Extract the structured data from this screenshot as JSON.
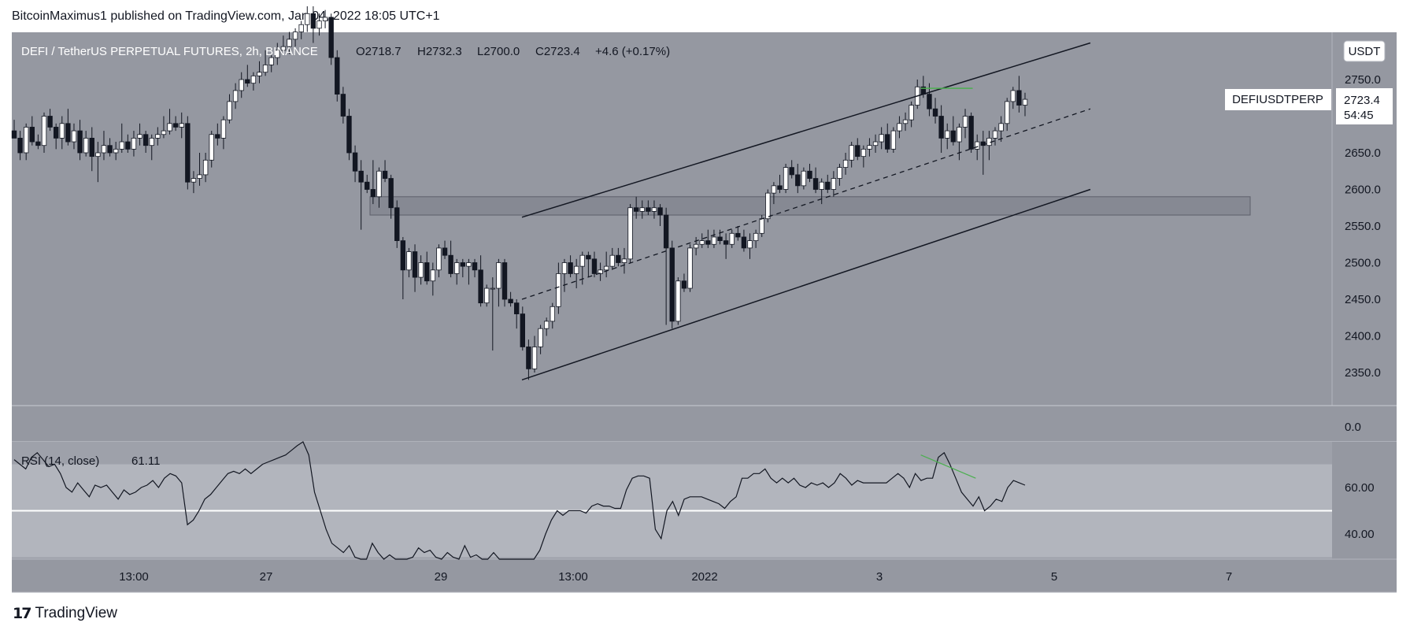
{
  "header": {
    "publisher_line": "BitcoinMaximus1 published on TradingView.com, Jan 04, 2022 18:05 UTC+1"
  },
  "footer": {
    "brand": "TradingView",
    "brand_icon": "tradingview-logo-icon"
  },
  "colors": {
    "background": "#9598a1",
    "rsi_background": "#9ea1aa",
    "rsi_band": "#b2b5bd",
    "candle_up": "#ffffff",
    "candle_down": "#131722",
    "line": "#131722",
    "green": "#4caf50",
    "zone": "#868993"
  },
  "chart_data": {
    "type": "candlestick",
    "legend": {
      "symbol": "DEFI / TetherUS PERPETUAL FUTURES, 2h, BINANCE",
      "open": "O2718.7",
      "high": "H2732.3",
      "low": "L2700.0",
      "close": "C2723.4",
      "change": "+4.6 (+0.17%)"
    },
    "currency": "USDT",
    "price_label": {
      "symbol": "DEFIUSDTPERP",
      "price": "2723.4",
      "countdown": "54:45"
    },
    "y_ticks": [
      "2750.0",
      "2700.0",
      "2650.0",
      "2600.0",
      "2550.0",
      "2500.0",
      "2450.0",
      "2400.0",
      "2350.0"
    ],
    "y_tick_values": [
      2750,
      2700,
      2650,
      2600,
      2550,
      2500,
      2450,
      2400,
      2350
    ],
    "separator_tick": "0.0",
    "x_ticks": [
      "13:00",
      "27",
      "29",
      "13:00",
      "2022",
      "3",
      "5",
      "7"
    ],
    "candles": [
      [
        2680,
        2695,
        2675,
        2670
      ],
      [
        2670,
        2680,
        2640,
        2650
      ],
      [
        2650,
        2690,
        2640,
        2685
      ],
      [
        2685,
        2700,
        2660,
        2665
      ],
      [
        2665,
        2675,
        2655,
        2660
      ],
      [
        2660,
        2705,
        2650,
        2700
      ],
      [
        2700,
        2710,
        2680,
        2685
      ],
      [
        2685,
        2690,
        2655,
        2670
      ],
      [
        2670,
        2700,
        2655,
        2690
      ],
      [
        2690,
        2710,
        2660,
        2665
      ],
      [
        2665,
        2690,
        2655,
        2680
      ],
      [
        2680,
        2695,
        2640,
        2650
      ],
      [
        2650,
        2680,
        2645,
        2670
      ],
      [
        2670,
        2685,
        2625,
        2645
      ],
      [
        2645,
        2665,
        2610,
        2650
      ],
      [
        2650,
        2680,
        2640,
        2660
      ],
      [
        2660,
        2670,
        2645,
        2650
      ],
      [
        2650,
        2665,
        2640,
        2655
      ],
      [
        2655,
        2690,
        2650,
        2665
      ],
      [
        2665,
        2675,
        2650,
        2655
      ],
      [
        2655,
        2680,
        2645,
        2670
      ],
      [
        2670,
        2690,
        2660,
        2675
      ],
      [
        2675,
        2680,
        2650,
        2660
      ],
      [
        2660,
        2675,
        2640,
        2670
      ],
      [
        2670,
        2685,
        2660,
        2675
      ],
      [
        2675,
        2700,
        2670,
        2680
      ],
      [
        2680,
        2710,
        2675,
        2690
      ],
      [
        2690,
        2700,
        2680,
        2685
      ],
      [
        2685,
        2705,
        2670,
        2690
      ],
      [
        2690,
        2700,
        2600,
        2610
      ],
      [
        2610,
        2625,
        2595,
        2615
      ],
      [
        2615,
        2650,
        2605,
        2620
      ],
      [
        2620,
        2650,
        2610,
        2640
      ],
      [
        2640,
        2680,
        2630,
        2675
      ],
      [
        2675,
        2690,
        2660,
        2670
      ],
      [
        2670,
        2700,
        2655,
        2695
      ],
      [
        2695,
        2730,
        2690,
        2720
      ],
      [
        2720,
        2745,
        2710,
        2735
      ],
      [
        2735,
        2760,
        2725,
        2750
      ],
      [
        2750,
        2770,
        2740,
        2745
      ],
      [
        2745,
        2760,
        2735,
        2755
      ],
      [
        2755,
        2775,
        2745,
        2760
      ],
      [
        2760,
        2790,
        2755,
        2770
      ],
      [
        2770,
        2785,
        2760,
        2780
      ],
      [
        2780,
        2800,
        2770,
        2790
      ],
      [
        2790,
        2810,
        2785,
        2795
      ],
      [
        2795,
        2815,
        2785,
        2805
      ],
      [
        2805,
        2820,
        2795,
        2815
      ],
      [
        2815,
        2830,
        2805,
        2825
      ],
      [
        2825,
        2850,
        2815,
        2840
      ],
      [
        2840,
        2850,
        2800,
        2820
      ],
      [
        2820,
        2840,
        2810,
        2830
      ],
      [
        2830,
        2845,
        2820,
        2835
      ],
      [
        2835,
        2840,
        2770,
        2780
      ],
      [
        2780,
        2790,
        2720,
        2730
      ],
      [
        2730,
        2740,
        2690,
        2700
      ],
      [
        2700,
        2710,
        2640,
        2650
      ],
      [
        2650,
        2660,
        2610,
        2625
      ],
      [
        2625,
        2640,
        2545,
        2610
      ],
      [
        2610,
        2620,
        2595,
        2600
      ],
      [
        2600,
        2640,
        2580,
        2590
      ],
      [
        2590,
        2630,
        2575,
        2625
      ],
      [
        2625,
        2640,
        2610,
        2615
      ],
      [
        2615,
        2620,
        2560,
        2575
      ],
      [
        2575,
        2585,
        2520,
        2530
      ],
      [
        2530,
        2535,
        2450,
        2490
      ],
      [
        2490,
        2520,
        2480,
        2515
      ],
      [
        2515,
        2525,
        2460,
        2480
      ],
      [
        2480,
        2510,
        2470,
        2500
      ],
      [
        2500,
        2515,
        2470,
        2475
      ],
      [
        2475,
        2500,
        2455,
        2490
      ],
      [
        2490,
        2525,
        2480,
        2520
      ],
      [
        2520,
        2530,
        2505,
        2510
      ],
      [
        2510,
        2530,
        2480,
        2485
      ],
      [
        2485,
        2505,
        2470,
        2500
      ],
      [
        2500,
        2505,
        2480,
        2495
      ],
      [
        2495,
        2505,
        2470,
        2500
      ],
      [
        2500,
        2505,
        2480,
        2490
      ],
      [
        2490,
        2510,
        2440,
        2445
      ],
      [
        2445,
        2470,
        2440,
        2465
      ],
      [
        2465,
        2480,
        2380,
        2465
      ],
      [
        2465,
        2505,
        2440,
        2500
      ],
      [
        2500,
        2505,
        2440,
        2450
      ],
      [
        2450,
        2460,
        2440,
        2445
      ],
      [
        2445,
        2450,
        2410,
        2430
      ],
      [
        2430,
        2440,
        2380,
        2385
      ],
      [
        2385,
        2395,
        2340,
        2355
      ],
      [
        2355,
        2400,
        2350,
        2385
      ],
      [
        2385,
        2415,
        2375,
        2410
      ],
      [
        2410,
        2425,
        2400,
        2420
      ],
      [
        2420,
        2445,
        2410,
        2440
      ],
      [
        2440,
        2500,
        2430,
        2485
      ],
      [
        2485,
        2505,
        2460,
        2500
      ],
      [
        2500,
        2510,
        2480,
        2485
      ],
      [
        2485,
        2505,
        2465,
        2495
      ],
      [
        2495,
        2515,
        2470,
        2510
      ],
      [
        2510,
        2515,
        2480,
        2505
      ],
      [
        2505,
        2515,
        2480,
        2485
      ],
      [
        2485,
        2500,
        2475,
        2490
      ],
      [
        2490,
        2515,
        2480,
        2495
      ],
      [
        2495,
        2520,
        2490,
        2510
      ],
      [
        2510,
        2520,
        2495,
        2500
      ],
      [
        2500,
        2520,
        2485,
        2505
      ],
      [
        2505,
        2580,
        2500,
        2575
      ],
      [
        2575,
        2590,
        2560,
        2570
      ],
      [
        2570,
        2585,
        2560,
        2575
      ],
      [
        2575,
        2585,
        2565,
        2570
      ],
      [
        2570,
        2585,
        2560,
        2575
      ],
      [
        2575,
        2580,
        2550,
        2565
      ],
      [
        2565,
        2575,
        2415,
        2520
      ],
      [
        2520,
        2530,
        2410,
        2420
      ],
      [
        2420,
        2480,
        2415,
        2475
      ],
      [
        2475,
        2485,
        2460,
        2465
      ],
      [
        2465,
        2525,
        2460,
        2520
      ],
      [
        2520,
        2535,
        2510,
        2525
      ],
      [
        2525,
        2540,
        2520,
        2530
      ],
      [
        2530,
        2545,
        2520,
        2525
      ],
      [
        2525,
        2545,
        2520,
        2535
      ],
      [
        2535,
        2545,
        2525,
        2530
      ],
      [
        2530,
        2540,
        2505,
        2525
      ],
      [
        2525,
        2545,
        2520,
        2540
      ],
      [
        2540,
        2550,
        2530,
        2535
      ],
      [
        2535,
        2545,
        2515,
        2520
      ],
      [
        2520,
        2540,
        2505,
        2530
      ],
      [
        2530,
        2545,
        2520,
        2540
      ],
      [
        2540,
        2565,
        2535,
        2560
      ],
      [
        2560,
        2600,
        2555,
        2595
      ],
      [
        2595,
        2610,
        2580,
        2605
      ],
      [
        2605,
        2620,
        2595,
        2600
      ],
      [
        2600,
        2635,
        2595,
        2630
      ],
      [
        2630,
        2640,
        2615,
        2620
      ],
      [
        2620,
        2635,
        2595,
        2605
      ],
      [
        2605,
        2630,
        2600,
        2625
      ],
      [
        2625,
        2635,
        2610,
        2615
      ],
      [
        2615,
        2630,
        2595,
        2600
      ],
      [
        2600,
        2615,
        2580,
        2610
      ],
      [
        2610,
        2620,
        2595,
        2600
      ],
      [
        2600,
        2625,
        2590,
        2615
      ],
      [
        2615,
        2635,
        2605,
        2630
      ],
      [
        2630,
        2650,
        2620,
        2640
      ],
      [
        2640,
        2665,
        2630,
        2660
      ],
      [
        2660,
        2670,
        2640,
        2645
      ],
      [
        2645,
        2660,
        2630,
        2655
      ],
      [
        2655,
        2670,
        2645,
        2660
      ],
      [
        2660,
        2675,
        2650,
        2665
      ],
      [
        2665,
        2685,
        2655,
        2675
      ],
      [
        2675,
        2690,
        2650,
        2655
      ],
      [
        2655,
        2685,
        2650,
        2680
      ],
      [
        2680,
        2700,
        2670,
        2690
      ],
      [
        2690,
        2705,
        2680,
        2695
      ],
      [
        2695,
        2720,
        2685,
        2715
      ],
      [
        2715,
        2750,
        2710,
        2740
      ],
      [
        2740,
        2755,
        2725,
        2730
      ],
      [
        2730,
        2745,
        2700,
        2710
      ],
      [
        2710,
        2725,
        2690,
        2700
      ],
      [
        2700,
        2715,
        2650,
        2670
      ],
      [
        2670,
        2690,
        2655,
        2680
      ],
      [
        2680,
        2700,
        2660,
        2665
      ],
      [
        2665,
        2690,
        2640,
        2685
      ],
      [
        2685,
        2710,
        2670,
        2700
      ],
      [
        2700,
        2705,
        2650,
        2655
      ],
      [
        2655,
        2675,
        2640,
        2665
      ],
      [
        2665,
        2680,
        2620,
        2660
      ],
      [
        2660,
        2680,
        2640,
        2670
      ],
      [
        2670,
        2685,
        2660,
        2680
      ],
      [
        2680,
        2700,
        2665,
        2690
      ],
      [
        2690,
        2725,
        2680,
        2720
      ],
      [
        2720,
        2740,
        2710,
        2735
      ],
      [
        2735,
        2755,
        2705,
        2715
      ],
      [
        2715,
        2732,
        2700,
        2723
      ]
    ],
    "channel": {
      "upper": [
        [
          2.45,
          2562
        ],
        [
          8.15,
          2800
        ]
      ],
      "lower": [
        [
          2.45,
          2340
        ],
        [
          8.15,
          2600
        ]
      ],
      "mid_dashed": [
        [
          2.45,
          2450
        ],
        [
          8.15,
          2710
        ]
      ],
      "resistance_high": [
        [
          6.45,
          2738
        ],
        [
          6.97,
          2738
        ]
      ]
    },
    "horizontal_zone": [
      2565,
      2590
    ],
    "rsi": {
      "label": "RSI (14, close)",
      "value_text": "61.11",
      "y_ticks": [
        "60.00",
        "40.00"
      ],
      "y_tick_values": [
        60,
        40
      ],
      "upper_band": 70,
      "lower_band": 30,
      "midline": 50,
      "values": [
        72,
        70,
        68,
        73,
        75,
        72,
        69,
        70,
        66,
        60,
        58,
        62,
        59,
        56,
        61,
        60,
        61,
        58,
        55,
        59,
        57,
        58,
        60,
        61,
        63,
        60,
        64,
        66,
        65,
        62,
        44,
        46,
        50,
        55,
        57,
        60,
        63,
        66,
        67,
        66,
        68,
        66,
        68,
        70,
        71,
        72,
        73,
        74,
        76,
        78,
        80,
        74,
        58,
        50,
        42,
        36,
        34,
        32,
        35,
        30,
        29,
        27,
        36,
        32,
        29,
        31,
        28,
        27,
        26,
        30,
        34,
        32,
        33,
        30,
        28,
        32,
        30,
        29,
        35,
        30,
        31,
        25,
        28,
        32,
        29,
        28,
        27,
        28,
        24,
        22,
        28,
        33,
        40,
        46,
        50,
        48,
        50,
        50,
        50,
        49,
        52,
        53,
        52,
        52,
        51,
        51,
        59,
        64,
        65,
        65,
        64,
        42,
        38,
        50,
        54,
        48,
        55,
        56,
        56,
        56,
        55,
        54,
        53,
        51,
        54,
        56,
        64,
        64,
        66,
        66,
        68,
        64,
        62,
        64,
        62,
        64,
        61,
        60,
        62,
        61,
        62,
        60,
        62,
        66,
        64,
        61,
        63,
        62,
        62,
        62,
        62,
        62,
        64,
        66,
        64,
        60,
        66,
        63,
        64,
        64,
        73,
        75,
        70,
        64,
        58,
        55,
        52,
        56,
        50,
        52,
        55,
        54,
        60,
        63,
        62,
        61
      ],
      "divergence_line": [
        [
          6.45,
          74
        ],
        [
          7.0,
          64
        ]
      ]
    }
  }
}
